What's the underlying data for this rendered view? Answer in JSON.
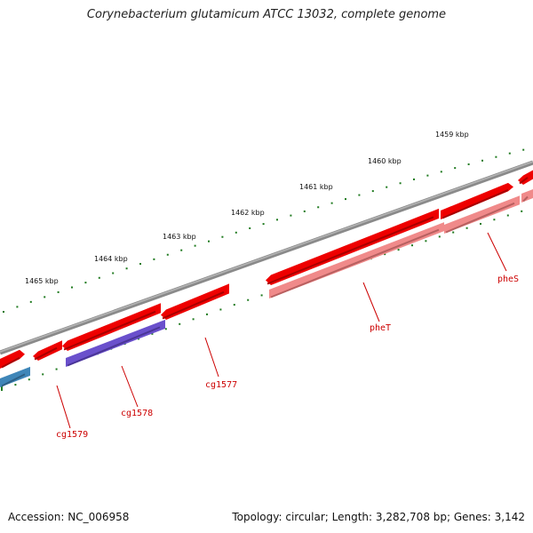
{
  "title": "Corynebacterium glutamicum ATCC 13032, complete genome",
  "footer": {
    "accession": "Accession: NC_006958",
    "summary": "Topology: circular; Length: 3,282,708 bp; Genes: 3,142"
  },
  "scale_labels": [
    "1459 kbp",
    "1460 kbp",
    "1461 kbp",
    "1462 kbp",
    "1463 kbp",
    "1464 kbp",
    "1465 kbp"
  ],
  "gene_labels": [
    "pheS",
    "pheT",
    "cg1577",
    "cg1578",
    "cg1579"
  ],
  "colors": {
    "backbone": "#7a7a7a",
    "forward_gene": "#ee0000",
    "reverse_gene": "#f08a8a",
    "purple_gene": "#6a50cc",
    "blue_gene": "#3f86b8",
    "ticks": "#1f7a1f",
    "label": "#cc0000"
  }
}
